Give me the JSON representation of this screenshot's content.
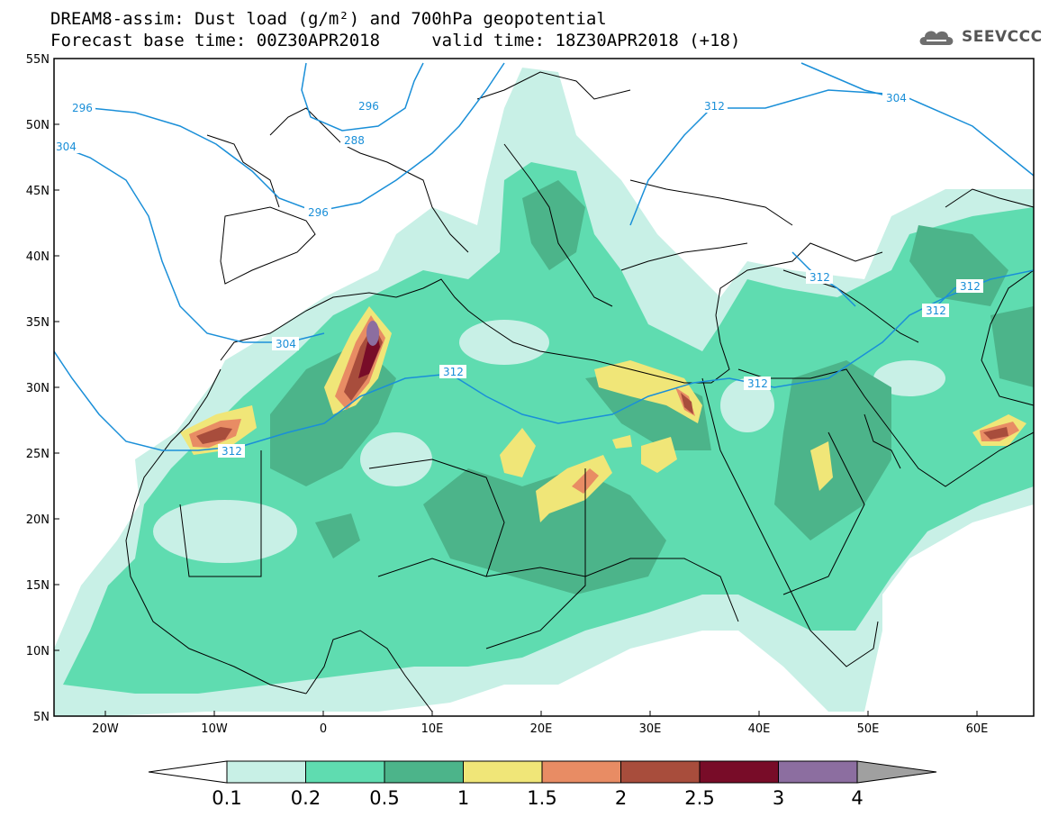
{
  "header": {
    "title_line1": "DREAM8-assim: Dust load (g/m²) and 700hPa geopotential",
    "title_line2": "Forecast base time: 00Z30APR2018     valid time: 18Z30APR2018 (+18)",
    "logo_text": "SEEVCCC"
  },
  "map": {
    "lon_range": [
      -25,
      65
    ],
    "lat_range": [
      5,
      55
    ],
    "lat_labels": [
      "55N",
      "50N",
      "45N",
      "40N",
      "35N",
      "30N",
      "25N",
      "20N",
      "15N",
      "10N",
      "5N"
    ],
    "lon_labels": [
      "20W",
      "10W",
      "0",
      "10E",
      "20E",
      "30E",
      "40E",
      "50E",
      "60E"
    ],
    "contour_labels": [
      "296",
      "304",
      "288",
      "296",
      "304",
      "312",
      "312",
      "304",
      "312",
      "312",
      "312",
      "312",
      "312",
      "296"
    ]
  },
  "colorbar": {
    "labels": [
      "0.1",
      "0.2",
      "0.5",
      "1",
      "1.5",
      "2",
      "2.5",
      "3",
      "4"
    ],
    "colors": [
      "#c8f0e6",
      "#5fdcb0",
      "#4cb48a",
      "#f0e678",
      "#e88c64",
      "#a84d3c",
      "#780c28",
      "#8c6ea0",
      "#a0a0a0"
    ]
  }
}
